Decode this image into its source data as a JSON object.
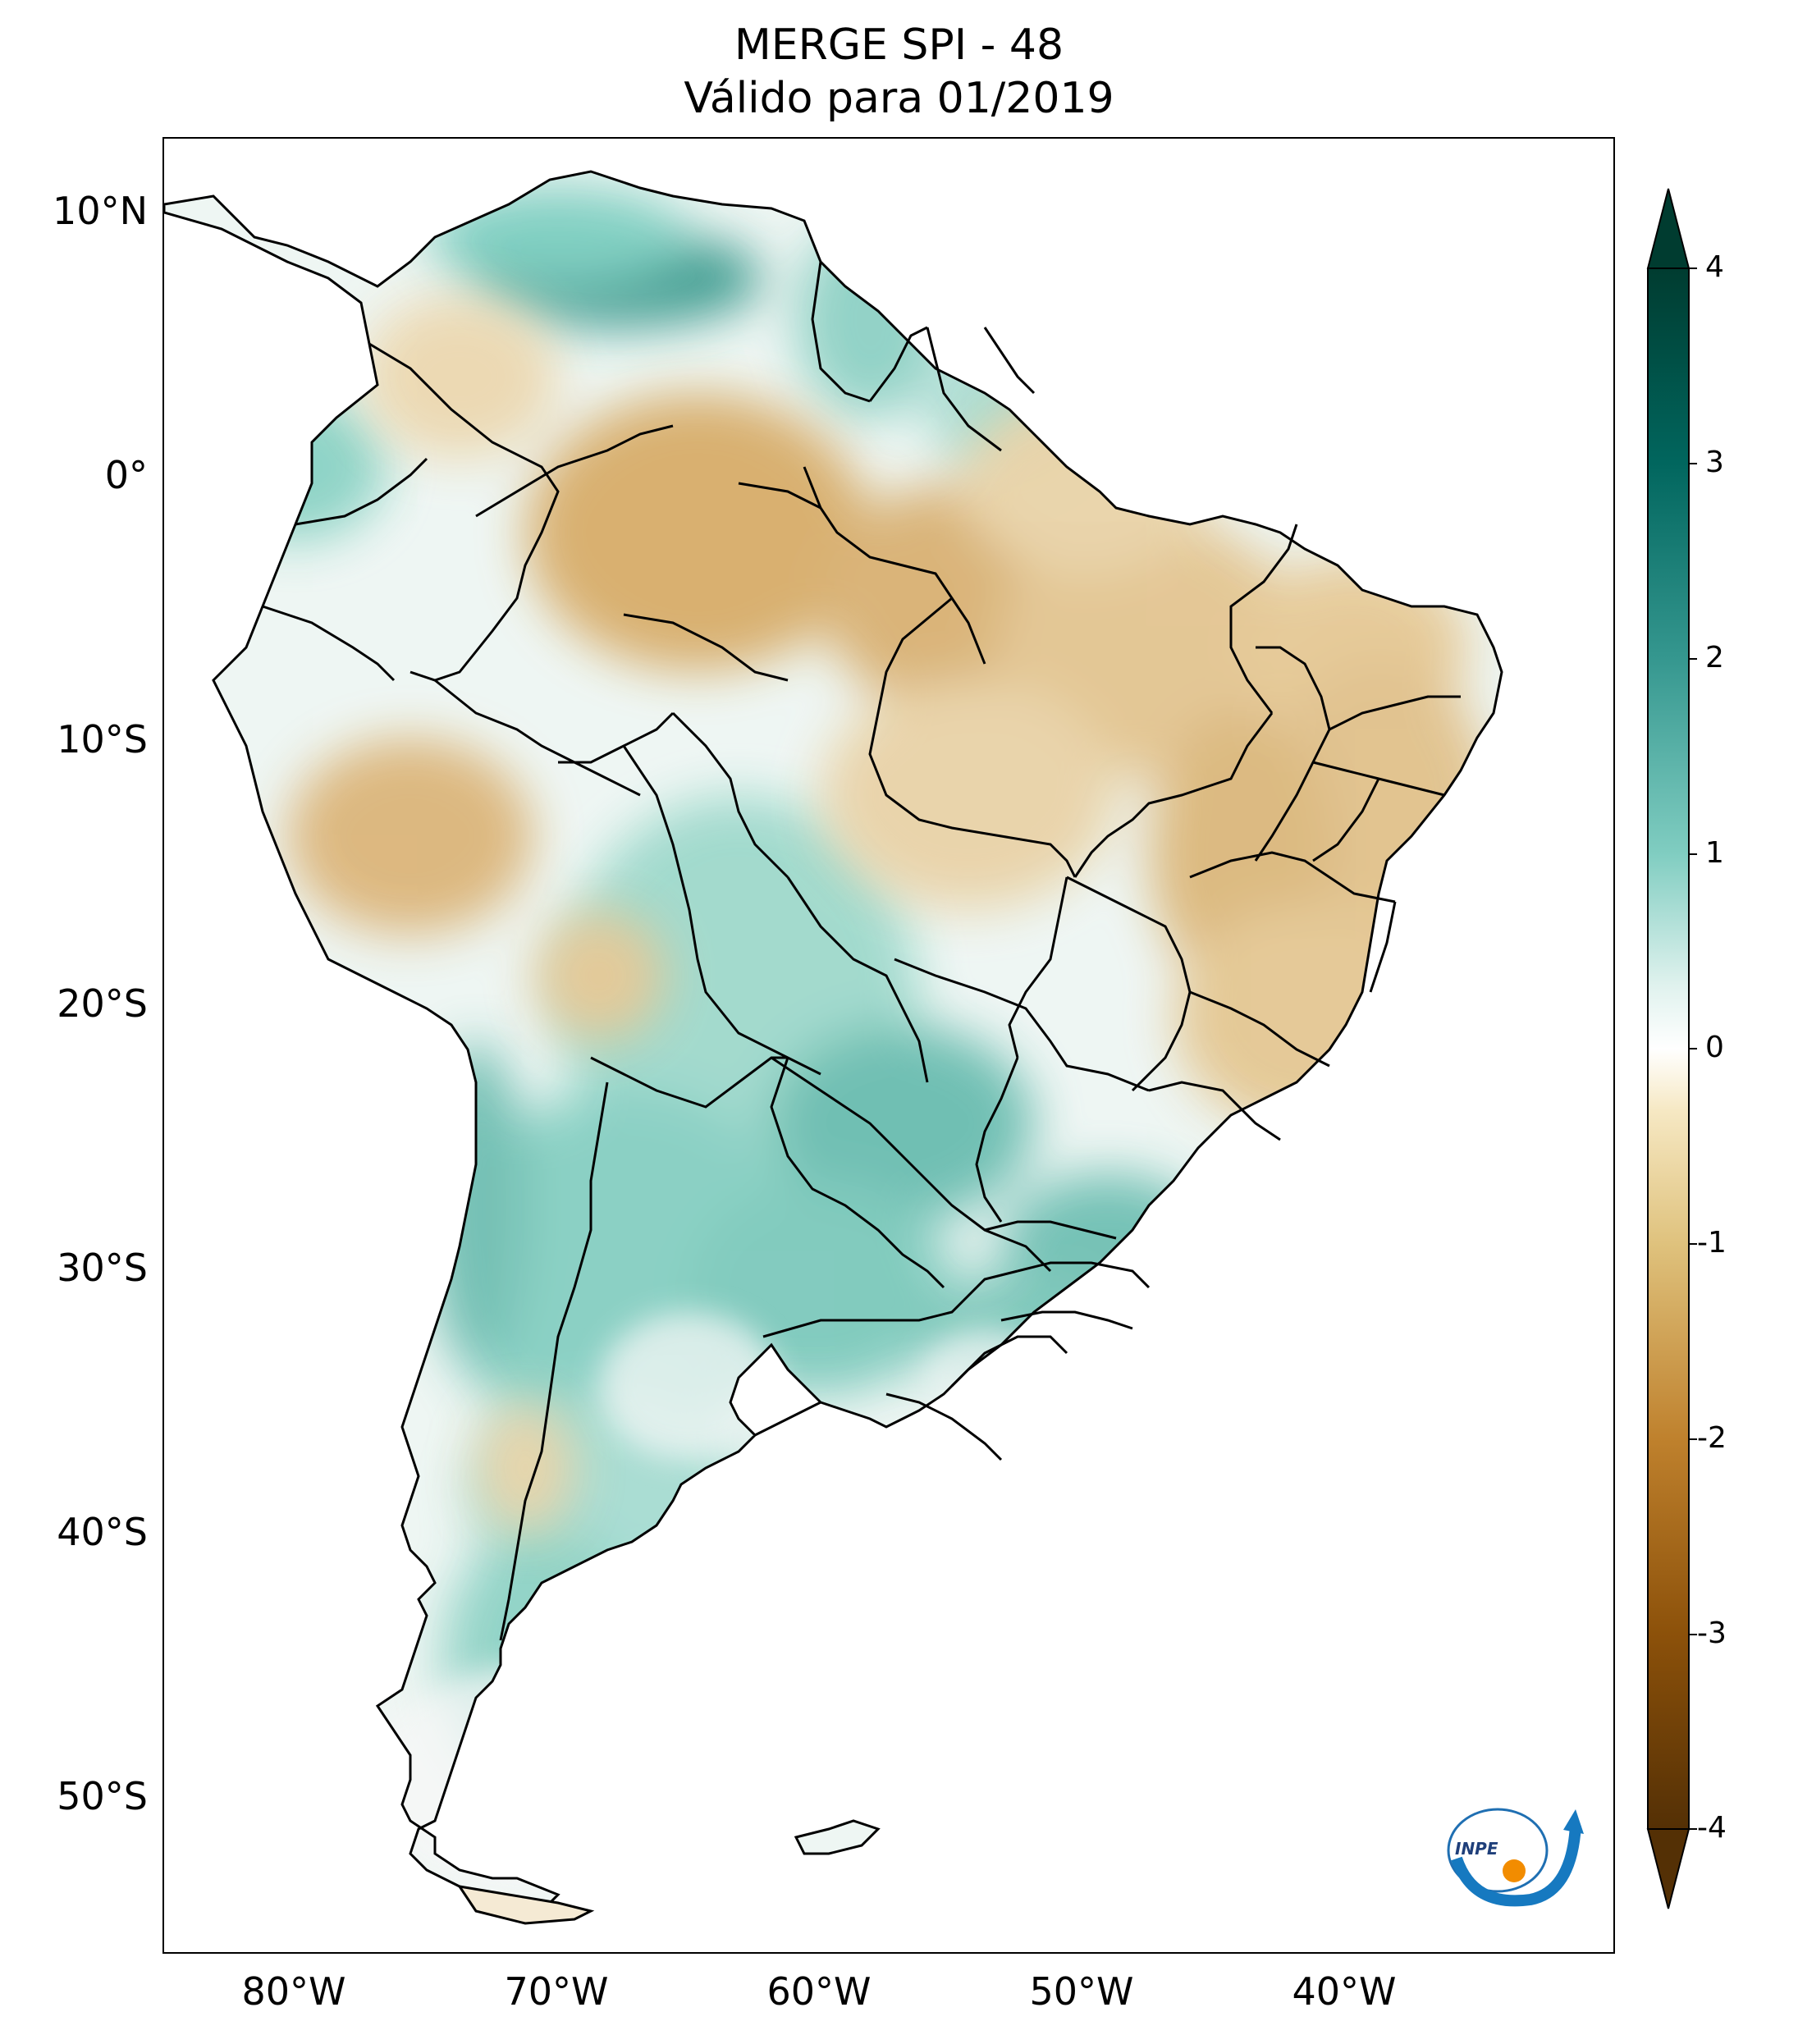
{
  "title": {
    "line1": "MERGE   SPI - 48",
    "line2": "Válido para 01/2019"
  },
  "lat_ticks": [
    "10°N",
    "0°",
    "10°S",
    "20°S",
    "30°S",
    "40°S",
    "50°S"
  ],
  "lon_ticks": [
    "80°W",
    "70°W",
    "60°W",
    "50°W",
    "40°W"
  ],
  "colorbar": {
    "labels": [
      "4",
      "3",
      "2",
      "1",
      "0",
      "-1",
      "-2",
      "-3",
      "-4"
    ],
    "colors": [
      "#003c30",
      "#01665e",
      "#35978f",
      "#80cdc1",
      "#c7eae5",
      "#f5f5f5",
      "#f6e8c3",
      "#dfc27d",
      "#bf812d",
      "#8c510a",
      "#543005"
    ]
  },
  "logo": {
    "text": "INPE"
  },
  "colors": {
    "green": "#5fb5a8",
    "light_green": "#bfe4dd",
    "brown": "#d2a865",
    "light_brown": "#efdcb6",
    "border": "#000000"
  }
}
